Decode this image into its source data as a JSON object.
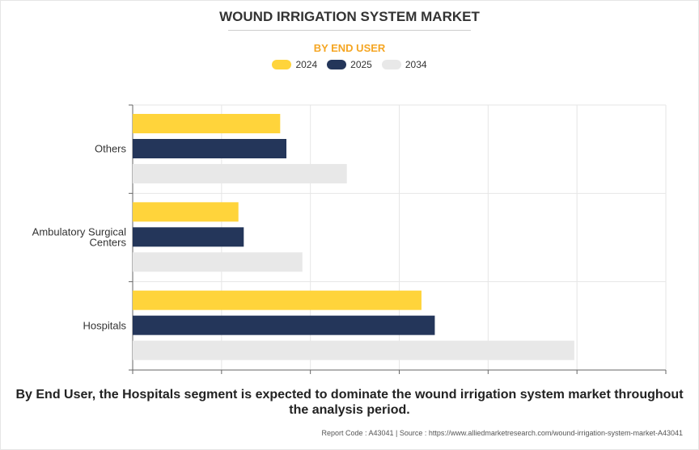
{
  "title": "WOUND IRRIGATION SYSTEM MARKET",
  "subtitle": "BY END USER",
  "colors": {
    "y2024": "#ffd43b",
    "y2025": "#24365a",
    "y2034": "#e8e8e8",
    "subtitle": "#f5a623"
  },
  "chart_data": {
    "type": "bar",
    "orientation": "horizontal",
    "categories": [
      "Others",
      "Ambulatory Surgical Centers",
      "Hospitals"
    ],
    "series": [
      {
        "name": "2024",
        "values": [
          0.166,
          0.119,
          0.325
        ]
      },
      {
        "name": "2025",
        "values": [
          0.173,
          0.125,
          0.34
        ]
      },
      {
        "name": "2034",
        "values": [
          0.241,
          0.191,
          0.497
        ]
      }
    ],
    "xlim": [
      0,
      0.6
    ],
    "grid": true,
    "legend": "top-center"
  },
  "caption": "By End User, the Hospitals segment is expected to dominate the wound irrigation system market throughout the analysis period.",
  "source": "Report Code : A43041  |  Source : https://www.alliedmarketresearch.com/wound-irrigation-system-market-A43041"
}
